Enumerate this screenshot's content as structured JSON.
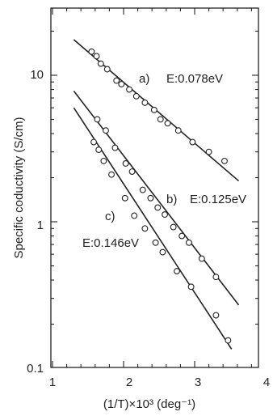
{
  "chart_data": {
    "type": "scatter",
    "title": "",
    "xlabel": "(1/T)×10³ (deg⁻¹)",
    "ylabel": "Specific coductivity (S/cm)",
    "x_scale": "linear",
    "y_scale": "log",
    "xlim": [
      1,
      4
    ],
    "ylim": [
      0.1,
      30
    ],
    "x_ticks": [
      "1",
      "2",
      "3",
      "4"
    ],
    "y_ticks": [
      "0.1",
      "1",
      "10"
    ],
    "grid": false,
    "legend": "none",
    "colors": {
      "ink": "#222222",
      "marker_fill": "#ffffff"
    },
    "series": [
      {
        "label": "a)",
        "annotation": "E:0.078eV",
        "fit_line": {
          "x": [
            1.3,
            3.62
          ],
          "y": [
            17.5,
            1.9
          ]
        },
        "x": [
          1.55,
          1.62,
          1.68,
          1.77,
          1.9,
          1.97,
          2.08,
          2.18,
          2.3,
          2.43,
          2.52,
          2.62,
          2.77,
          2.97,
          3.2,
          3.42
        ],
        "y": [
          14.5,
          13.5,
          12.0,
          11.0,
          9.2,
          8.7,
          8.0,
          7.2,
          6.5,
          5.8,
          5.0,
          4.7,
          4.2,
          3.5,
          3.0,
          2.6
        ]
      },
      {
        "label": "b)",
        "annotation": "E:0.125eV",
        "fit_line": {
          "x": [
            1.3,
            3.62
          ],
          "y": [
            7.8,
            0.27
          ]
        },
        "x": [
          1.63,
          1.75,
          1.88,
          2.03,
          2.12,
          2.27,
          2.38,
          2.48,
          2.58,
          2.7,
          2.82,
          2.92,
          3.1,
          3.3
        ],
        "y": [
          5.0,
          4.2,
          3.2,
          2.5,
          2.2,
          1.65,
          1.45,
          1.25,
          1.12,
          0.92,
          0.8,
          0.72,
          0.56,
          0.42
        ]
      },
      {
        "label": "c)",
        "annotation": "E:0.146eV",
        "fit_line": {
          "x": [
            1.3,
            3.52
          ],
          "y": [
            6.0,
            0.135
          ]
        },
        "x": [
          1.58,
          1.65,
          1.72,
          1.83,
          2.02,
          2.15,
          2.3,
          2.45,
          2.55,
          2.75,
          2.95,
          3.3,
          3.47
        ],
        "y": [
          3.5,
          3.1,
          2.6,
          2.1,
          1.45,
          1.1,
          0.9,
          0.72,
          0.62,
          0.46,
          0.36,
          0.23,
          0.155
        ]
      }
    ]
  }
}
